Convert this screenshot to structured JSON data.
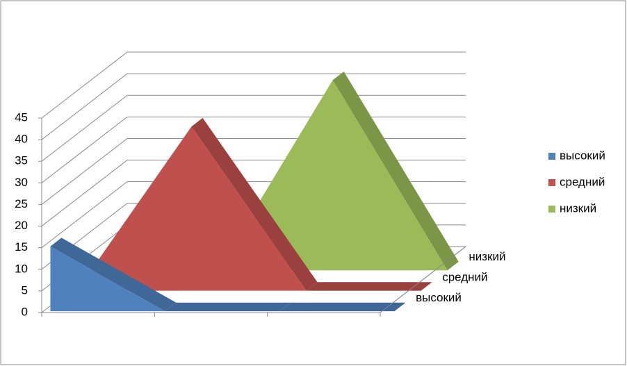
{
  "chart_data": {
    "type": "area3d",
    "categories": [
      null,
      null,
      null,
      null
    ],
    "series": [
      {
        "name": "высокий",
        "color": "#4f81bd",
        "values": [
          15,
          0,
          0,
          0
        ]
      },
      {
        "name": "средний",
        "color": "#c0504d",
        "values": [
          0,
          38,
          0,
          0
        ]
      },
      {
        "name": "низкий",
        "color": "#9bbb59",
        "values": [
          0,
          0,
          44,
          0
        ]
      }
    ],
    "ylim": [
      0,
      45
    ],
    "yticks": [
      0,
      5,
      10,
      15,
      20,
      25,
      30,
      35,
      40,
      45
    ],
    "grid": true,
    "legend": "right"
  }
}
